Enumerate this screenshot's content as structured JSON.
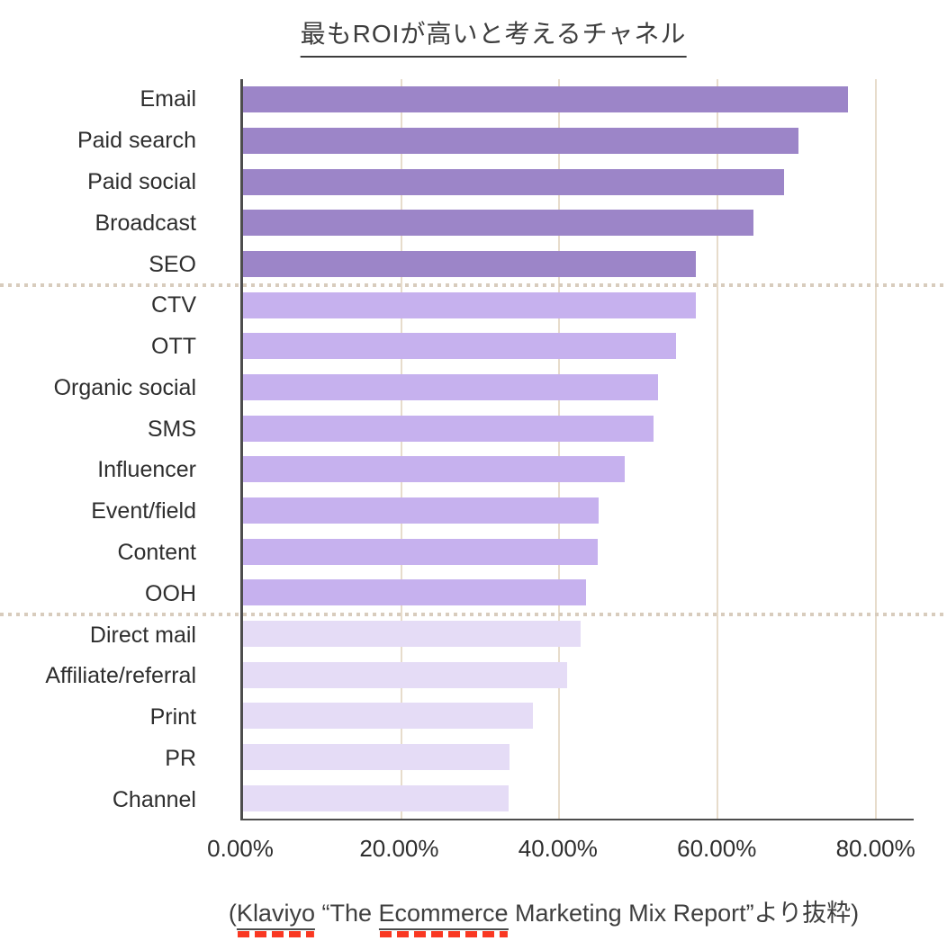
{
  "title": "最もROIが高いと考えるチャネル",
  "footer": {
    "prefix": "(",
    "word1": "Klaviyo",
    "mid": " “The ",
    "word2": "Ecommerce",
    "suffix": " Marketing Mix Report”より抜粋)"
  },
  "chart_data": {
    "type": "bar",
    "orientation": "horizontal",
    "title": "最もROIが高いと考えるチャネル",
    "categories": [
      "Email",
      "Paid search",
      "Paid social",
      "Broadcast",
      "SEO",
      "CTV",
      "OTT",
      "Organic social",
      "SMS",
      "Influencer",
      "Event/field",
      "Content",
      "OOH",
      "Direct mail",
      "Affiliate/referral",
      "Print",
      "PR",
      "Channel"
    ],
    "values": [
      76.5,
      70.2,
      68.4,
      64.5,
      57.3,
      57.2,
      54.7,
      52.5,
      51.9,
      48.3,
      45.0,
      44.9,
      43.4,
      42.7,
      41.0,
      36.7,
      33.7,
      33.6
    ],
    "unit": "%",
    "x_ticks": [
      {
        "label": "0.00%",
        "value": 0
      },
      {
        "label": "20.00%",
        "value": 20
      },
      {
        "label": "40.00%",
        "value": 40
      },
      {
        "label": "60.00%",
        "value": 60
      },
      {
        "label": "80.00%",
        "value": 80
      }
    ],
    "x_max": 84.8,
    "grid": "vertical",
    "legend": "none",
    "group_colors": [
      {
        "name": "high",
        "start": 0,
        "end": 4,
        "color": "#9c85c8"
      },
      {
        "name": "mid",
        "start": 5,
        "end": 12,
        "color": "#c6b1ee"
      },
      {
        "name": "low",
        "start": 13,
        "end": 17,
        "color": "#e5dcf6"
      }
    ],
    "separators_after": [
      4,
      12
    ]
  },
  "colors": {
    "axis": "#4d4d4d",
    "gridline": "#e7dccb",
    "separator_dots": "#d8ccbd",
    "title_text": "#3d3d3d",
    "label_text": "#2e2e2e",
    "spellcheck_red": "#f93822"
  }
}
